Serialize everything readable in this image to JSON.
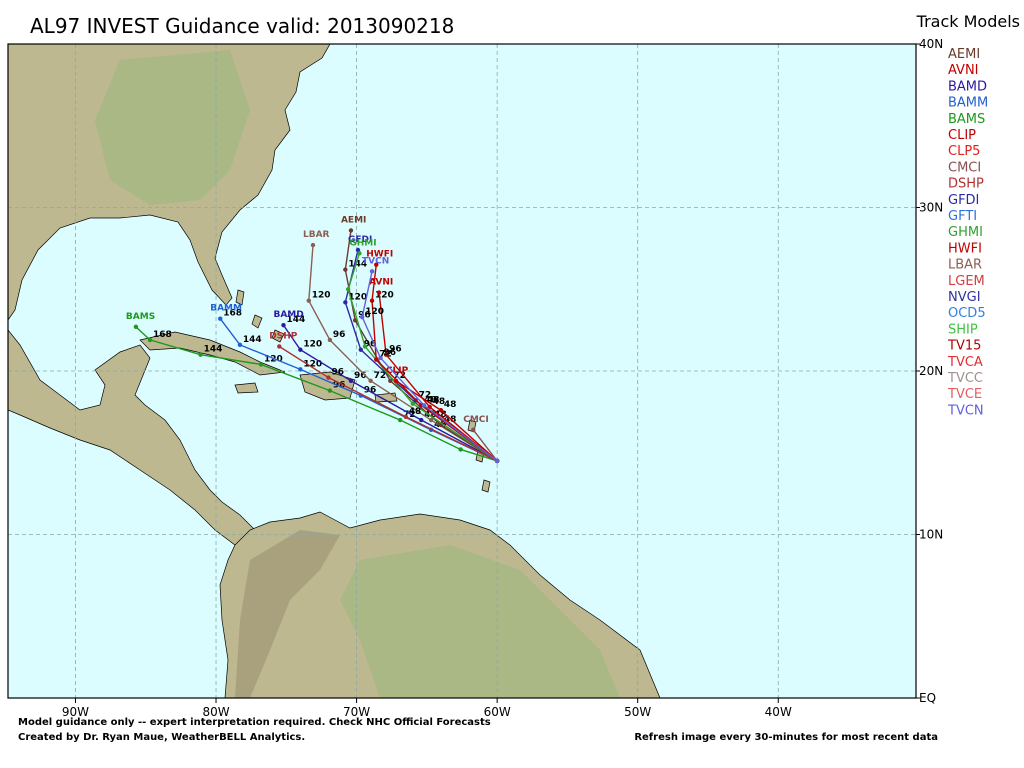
{
  "title": "AL97 INVEST Guidance valid: 2013090218",
  "legend": {
    "title": "Track Models",
    "models": [
      {
        "name": "AEMI",
        "color": "#6b3a2a"
      },
      {
        "name": "AVNI",
        "color": "#c00000"
      },
      {
        "name": "BAMD",
        "color": "#2a1aa0"
      },
      {
        "name": "BAMM",
        "color": "#2060d0"
      },
      {
        "name": "BAMS",
        "color": "#1c9a1c"
      },
      {
        "name": "CLIP",
        "color": "#c00000"
      },
      {
        "name": "CLP5",
        "color": "#e02020"
      },
      {
        "name": "CMCI",
        "color": "#8a5050"
      },
      {
        "name": "DSHP",
        "color": "#b03030"
      },
      {
        "name": "GFDI",
        "color": "#2a2aa8"
      },
      {
        "name": "GFTI",
        "color": "#3070e0"
      },
      {
        "name": "GHMI",
        "color": "#30a030"
      },
      {
        "name": "HWFI",
        "color": "#c00000"
      },
      {
        "name": "LBAR",
        "color": "#8a6050"
      },
      {
        "name": "LGEM",
        "color": "#d04040"
      },
      {
        "name": "NVGI",
        "color": "#3030a0"
      },
      {
        "name": "OCD5",
        "color": "#3080e0"
      },
      {
        "name": "SHIP",
        "color": "#40c040"
      },
      {
        "name": "TV15",
        "color": "#b00000"
      },
      {
        "name": "TVCA",
        "color": "#e03030"
      },
      {
        "name": "TVCC",
        "color": "#a09090"
      },
      {
        "name": "TVCE",
        "color": "#e06060"
      },
      {
        "name": "TVCN",
        "color": "#6060e0"
      }
    ]
  },
  "map": {
    "lonlim": [
      -94.8,
      -30.2
    ],
    "latlim": [
      0,
      40
    ],
    "lonticks": [
      {
        "value": -90,
        "label": "90W"
      },
      {
        "value": -80,
        "label": "80W"
      },
      {
        "value": -70,
        "label": "70W"
      },
      {
        "value": -60,
        "label": "60W"
      },
      {
        "value": -50,
        "label": "50W"
      },
      {
        "value": -40,
        "label": "40W"
      }
    ],
    "latticks": [
      {
        "value": 0,
        "label": "EQ"
      },
      {
        "value": 10,
        "label": "10N"
      },
      {
        "value": 20,
        "label": "20N"
      },
      {
        "value": 30,
        "label": "30N"
      },
      {
        "value": 40,
        "label": "40N"
      }
    ],
    "grid": true
  },
  "tracks": [
    {
      "name": "BAMS",
      "color": "#1c9a1c",
      "lon": [
        -60,
        -62.6,
        -66.9,
        -71.9,
        -76.8,
        -81.1,
        -84.7,
        -85.7
      ],
      "lat": [
        14.5,
        15.2,
        17.0,
        18.8,
        20.4,
        21.0,
        21.9,
        22.7
      ],
      "point_labels": [
        null,
        null,
        "72",
        "96",
        "120",
        "144",
        "168",
        null
      ]
    },
    {
      "name": "BAMM",
      "color": "#2060d0",
      "lon": [
        -60,
        -64.7,
        -69.7,
        -74.0,
        -78.3,
        -79.7
      ],
      "lat": [
        14.5,
        16.4,
        18.5,
        20.1,
        21.6,
        23.2
      ],
      "point_labels": [
        null,
        "48",
        "96",
        "120",
        "144",
        "168"
      ]
    },
    {
      "name": "BAMD",
      "color": "#2a1aa0",
      "lon": [
        -60,
        -65.4,
        -70.4,
        -74.0,
        -75.2
      ],
      "lat": [
        14.5,
        17.0,
        19.4,
        21.3,
        22.8
      ],
      "point_labels": [
        null,
        "48",
        "96",
        "120",
        "144"
      ]
    },
    {
      "name": "LBAR",
      "color": "#8a6050",
      "lon": [
        -60,
        -64.7,
        -69.0,
        -71.9,
        -73.4,
        -73.1
      ],
      "lat": [
        14.5,
        17.0,
        19.4,
        21.9,
        24.3,
        27.7
      ],
      "point_labels": [
        null,
        "48",
        "72",
        "96",
        "120",
        null
      ]
    },
    {
      "name": "AEMI",
      "color": "#6b3a2a",
      "lon": [
        -60,
        -64.0,
        -67.6,
        -70.1,
        -70.8,
        -70.4
      ],
      "lat": [
        14.5,
        16.7,
        19.4,
        23.1,
        26.2,
        28.6
      ],
      "point_labels": [
        null,
        "48",
        "72",
        "96",
        "144",
        null
      ]
    },
    {
      "name": "GFDI",
      "color": "#2a2aa8",
      "lon": [
        -60,
        -65.8,
        -69.7,
        -70.8,
        -69.9
      ],
      "lat": [
        14.5,
        18.2,
        21.3,
        24.2,
        27.4
      ],
      "point_labels": [
        null,
        "72",
        "96",
        "120",
        null
      ]
    },
    {
      "name": "GHMI",
      "color": "#30a030",
      "lon": [
        -60,
        -66.0,
        -69.4,
        -70.6,
        -69.8
      ],
      "lat": [
        14.5,
        18.0,
        21.5,
        25.0,
        27.2
      ],
      "point_labels": [
        null,
        null,
        null,
        null,
        null
      ]
    },
    {
      "name": "HWFI",
      "color": "#c00000",
      "lon": [
        -60,
        -65.4,
        -68.6,
        -68.9,
        -68.6
      ],
      "lat": [
        14.5,
        17.9,
        20.7,
        24.3,
        26.5
      ],
      "point_labels": [
        null,
        "48",
        "72",
        "120",
        null
      ]
    },
    {
      "name": "AVNI",
      "color": "#c00000",
      "lon": [
        -60,
        -64.8,
        -67.9,
        -68.4
      ],
      "lat": [
        14.5,
        17.8,
        21.0,
        24.8
      ],
      "point_labels": [
        null,
        "48",
        "96",
        null
      ]
    },
    {
      "name": "CLIP",
      "color": "#c00000",
      "lon": [
        -60,
        -64.0,
        -67.2
      ],
      "lat": [
        14.5,
        17.6,
        19.4
      ],
      "point_labels": [
        null,
        "48",
        null
      ]
    },
    {
      "name": "CMCI",
      "color": "#8a5050",
      "lon": [
        -60,
        -61.7
      ],
      "lat": [
        14.5,
        16.4
      ],
      "point_labels": [
        null,
        null
      ]
    },
    {
      "name": "DSHP",
      "color": "#b03030",
      "lon": [
        -60,
        -66.5,
        -72.0,
        -75.5
      ],
      "lat": [
        14.5,
        17.2,
        19.6,
        21.5
      ],
      "point_labels": [
        null,
        "48",
        "96",
        null
      ]
    },
    {
      "name": "TVCN",
      "color": "#6060e0",
      "lon": [
        -60,
        -65.2,
        -68.3,
        -69.6,
        -68.9
      ],
      "lat": [
        14.5,
        17.9,
        20.8,
        23.3,
        26.1
      ],
      "point_labels": [
        null,
        "48",
        "96",
        "120",
        null
      ]
    }
  ],
  "footer": {
    "line1": "Model guidance only -- expert interpretation required.  Check NHC Official Forecasts",
    "line2": "Created by Dr. Ryan Maue, WeatherBELL Analytics.",
    "right": "Refresh image every 30-minutes for most recent data"
  }
}
